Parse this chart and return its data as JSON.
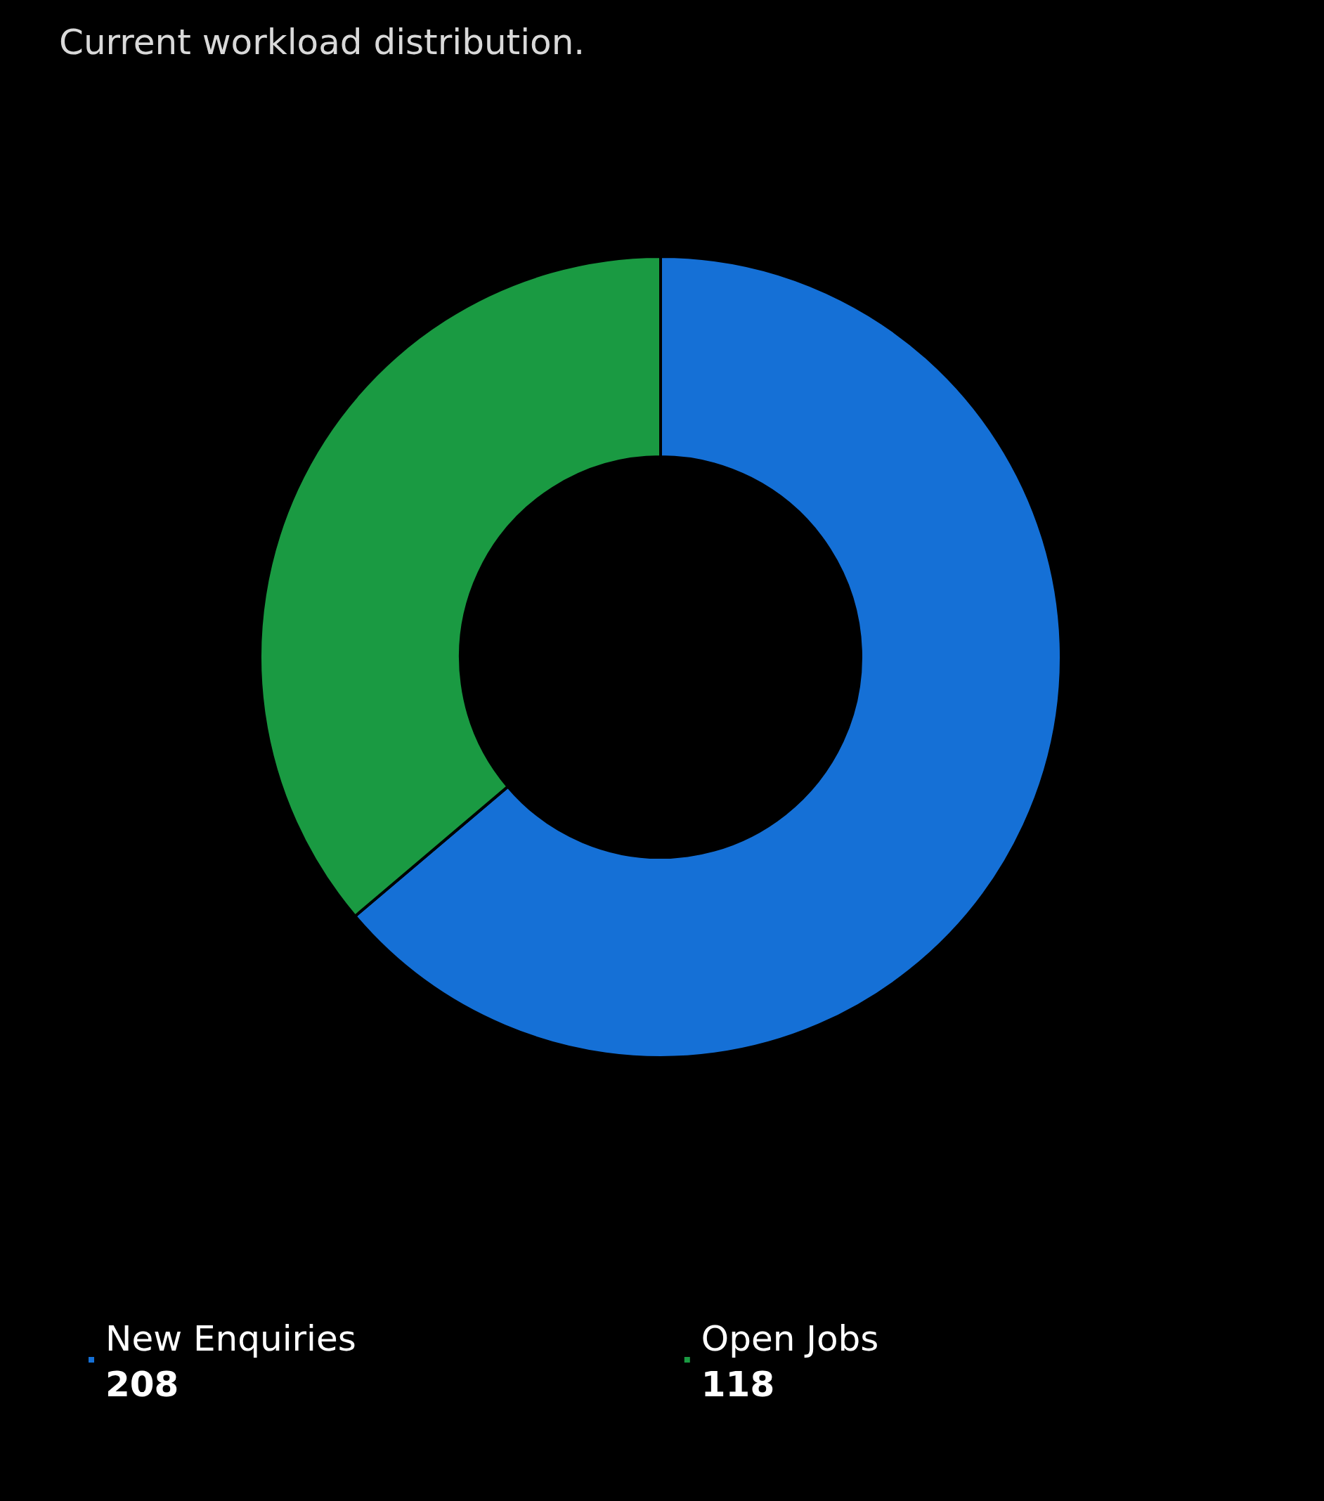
{
  "chart_data": {
    "type": "donut",
    "title": "Current workload distribution.",
    "categories": [
      "New Enquiries",
      "Open Jobs"
    ],
    "values": [
      208,
      118
    ],
    "colors": [
      "#1570d6",
      "#1a9a42"
    ],
    "legend": "bottom",
    "data_labels": true
  }
}
